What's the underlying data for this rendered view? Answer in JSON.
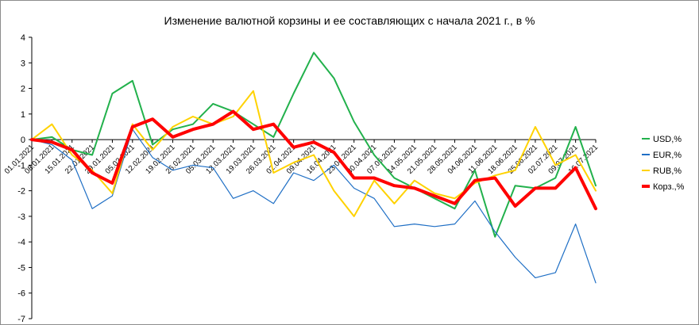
{
  "chart_data": {
    "type": "line",
    "title": "Изменение  валютной корзины  и ее составляющих  с начала 2021 г., в %",
    "xlabel": "",
    "ylabel": "",
    "ylim": [
      -7,
      4
    ],
    "yticks": [
      "4",
      "3",
      "2",
      "1",
      "0",
      "-1",
      "-2",
      "-3",
      "-4",
      "-5",
      "-6",
      "-7"
    ],
    "grid": false,
    "legend": "right",
    "x": [
      "01.01.2021",
      "08.01.2021",
      "15.01.2021",
      "22.01.2021",
      "29.01.2021",
      "05.02.2021",
      "12.02.2021",
      "19.02.2021",
      "26.02.2021",
      "05.03.2021",
      "12.03.2021",
      "19.03.2021",
      "26.03.2021",
      "02.04.2021",
      "09.04.2021",
      "16.04.2021",
      "23.04.2021",
      "30.04.2021",
      "07.05.2021",
      "14.05.2021",
      "21.05.2021",
      "28.05.2021",
      "04.06.2021",
      "11.06.2021",
      "18.06.2021",
      "25.06.2021",
      "02.07.2021",
      "09.07.2021",
      "16.07.2021"
    ],
    "series": [
      {
        "name": "USD,%",
        "color": "#22b14c",
        "width": 2,
        "values": [
          0,
          0.1,
          -0.4,
          -0.6,
          1.8,
          2.3,
          -0.2,
          0.4,
          0.6,
          1.4,
          1.1,
          0.6,
          0.1,
          1.8,
          3.4,
          2.4,
          0.7,
          -0.6,
          -1.5,
          -1.9,
          -2.3,
          -2.7,
          -1.2,
          -3.8,
          -1.8,
          -1.9,
          -1.5,
          0.5,
          -1.8
        ]
      },
      {
        "name": "EUR,%",
        "color": "#1f6fc5",
        "width": 1.2,
        "values": [
          0,
          -0.2,
          -0.8,
          -2.7,
          -2.2,
          0.4,
          -0.7,
          -1.2,
          -1.0,
          -1.1,
          -2.3,
          -2.0,
          -2.5,
          -1.3,
          -1.6,
          -1.0,
          -1.9,
          -2.3,
          -3.4,
          -3.3,
          -3.4,
          -3.3,
          -2.4,
          -3.6,
          -4.6,
          -5.4,
          -5.2,
          -3.3,
          -5.6
        ]
      },
      {
        "name": "RUB,%",
        "color": "#ffd200",
        "width": 2,
        "values": [
          0,
          0.6,
          -0.6,
          -1.2,
          -2.1,
          0.6,
          -0.4,
          0.5,
          0.9,
          0.6,
          0.9,
          1.9,
          -1.3,
          -0.9,
          -0.6,
          -2.0,
          -3.0,
          -1.6,
          -2.5,
          -1.6,
          -2.1,
          -2.3,
          -1.7,
          -1.4,
          -1.2,
          0.5,
          -1.0,
          -0.6,
          -2.0
        ]
      },
      {
        "name": "Корз.,%",
        "color": "#ff0000",
        "width": 4,
        "values": [
          0,
          -0.1,
          -0.4,
          -1.3,
          -1.7,
          0.5,
          0.8,
          0.1,
          0.4,
          0.6,
          1.1,
          0.4,
          0.6,
          -0.3,
          -0.1,
          -0.5,
          -1.5,
          -1.5,
          -1.8,
          -1.9,
          -2.2,
          -2.5,
          -1.6,
          -1.5,
          -2.6,
          -1.9,
          -1.9,
          -1.1,
          -2.7
        ]
      }
    ]
  }
}
